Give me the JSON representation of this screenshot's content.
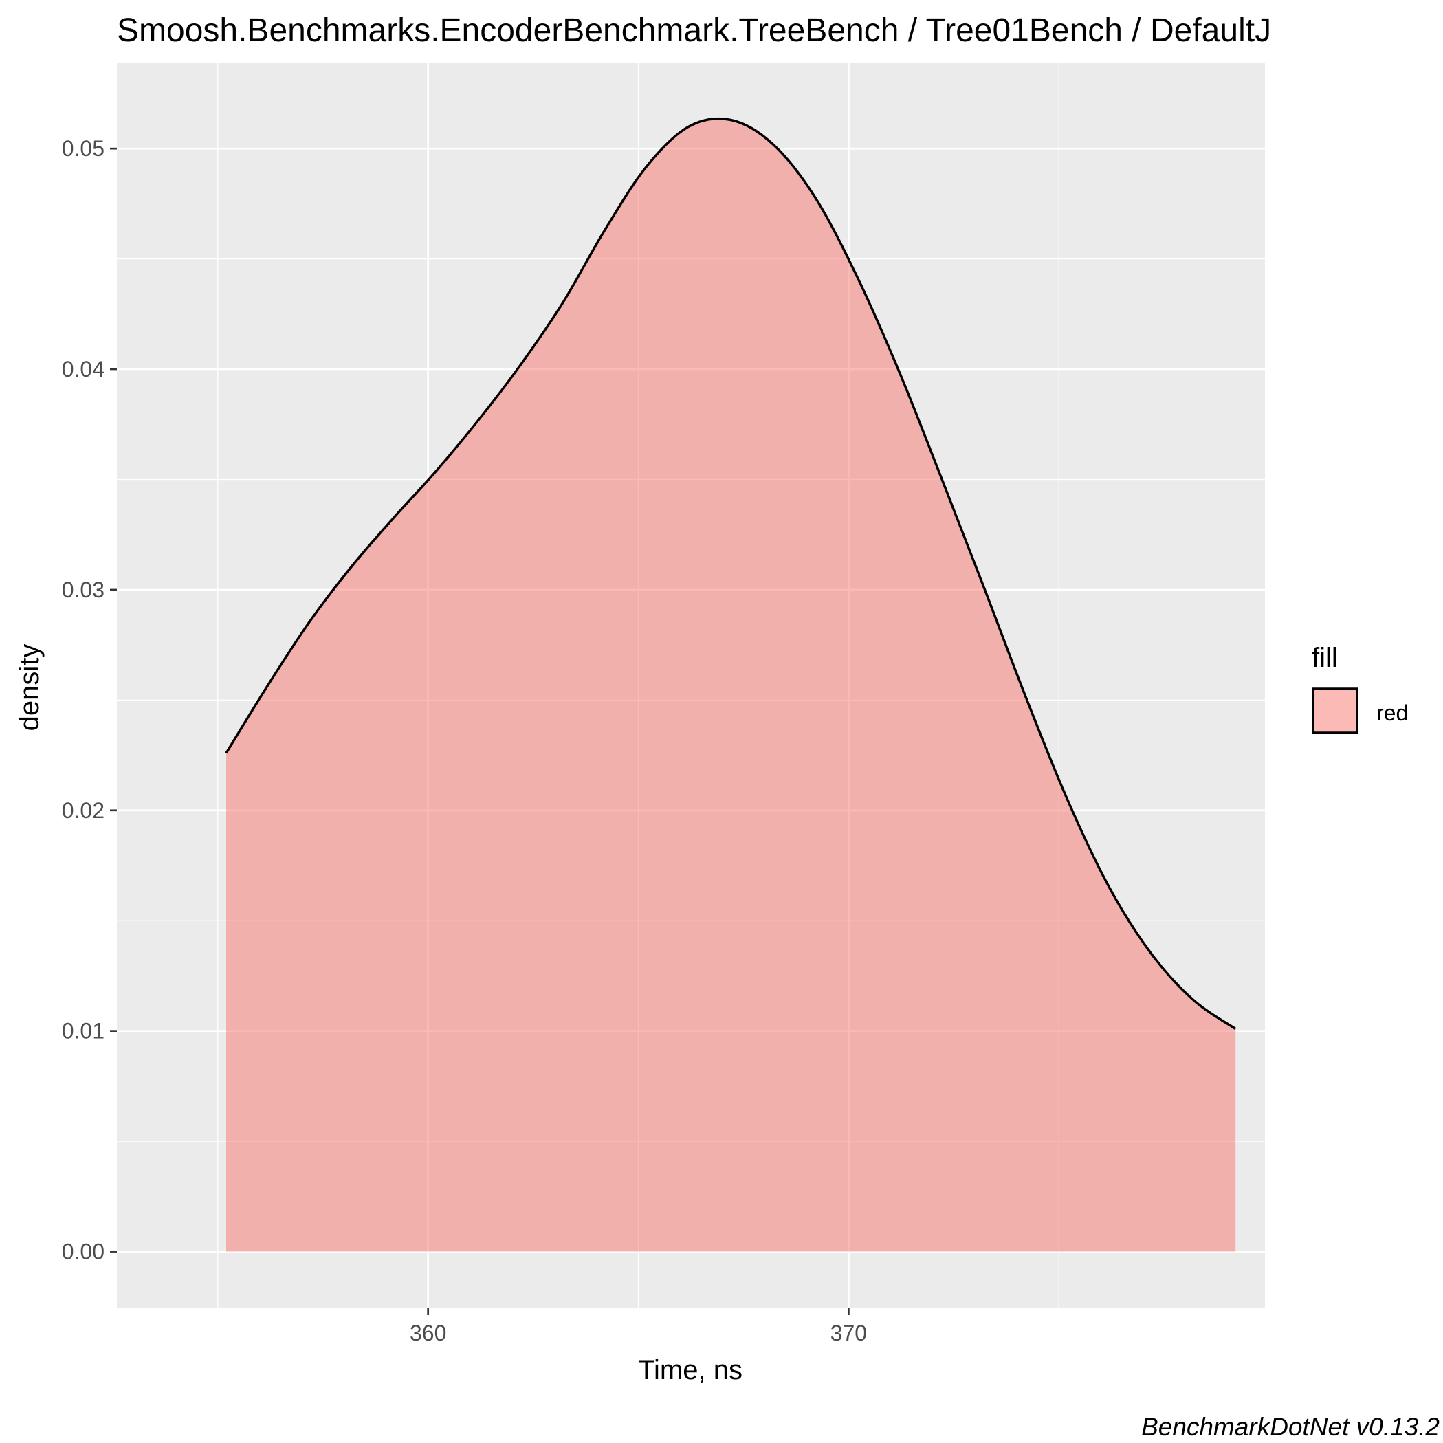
{
  "chart_data": {
    "type": "area",
    "title": "Smoosh.Benchmarks.EncoderBenchmark.TreeBench / Tree01Bench / DefaultJ",
    "xlabel": "Time, ns",
    "ylabel": "density",
    "caption": "BenchmarkDotNet v0.13.2",
    "xlim": [
      352.6,
      379.9
    ],
    "ylim": [
      -0.00257,
      0.05387
    ],
    "x_major_ticks": [
      360,
      370
    ],
    "x_tick_labels": [
      "360",
      "370"
    ],
    "x_minor_ticks": [
      355,
      365,
      375
    ],
    "y_major_ticks": [
      0.0,
      0.01,
      0.02,
      0.03,
      0.04,
      0.05
    ],
    "y_tick_labels": [
      "0.00",
      "0.01",
      "0.02",
      "0.03",
      "0.04",
      "0.05"
    ],
    "y_minor_ticks": [
      0.005,
      0.015,
      0.025,
      0.035,
      0.045
    ],
    "grid": true,
    "legend": {
      "title": "fill",
      "position": "right",
      "entries": [
        {
          "label": "red",
          "color": "#F8766D"
        }
      ]
    },
    "series": [
      {
        "fill_color": "#F8766D",
        "fill_opacity": 0.5,
        "line_color": "#000000",
        "x": [
          355.2,
          356.2,
          357.2,
          358.2,
          359.2,
          360.2,
          361.2,
          362.2,
          363.2,
          364.2,
          365.2,
          366.2,
          367.2,
          368.2,
          369.2,
          370.2,
          371.2,
          372.2,
          373.2,
          374.2,
          375.2,
          376.2,
          377.2,
          378.2,
          379.2
        ],
        "y": [
          0.0226,
          0.0257,
          0.0286,
          0.0311,
          0.0333,
          0.0354,
          0.0377,
          0.0402,
          0.043,
          0.0463,
          0.0492,
          0.051,
          0.0513,
          0.0502,
          0.0478,
          0.0442,
          0.0399,
          0.0351,
          0.0302,
          0.0252,
          0.0205,
          0.0165,
          0.0135,
          0.0114,
          0.0101
        ]
      }
    ]
  },
  "style": {
    "panel_background": "#EBEBEB",
    "grid_color": "#FFFFFF",
    "tick_label_color": "#4D4D4D",
    "text_color": "#000000"
  }
}
